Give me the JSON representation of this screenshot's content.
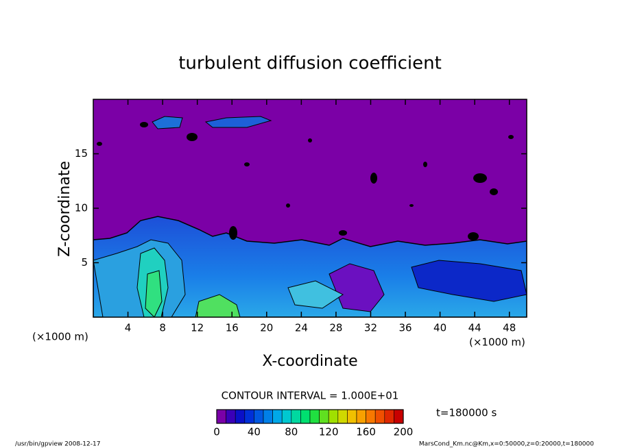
{
  "chart_data": {
    "type": "contour",
    "title": "turbulent diffusion coefficient",
    "x_label": "X-coordinate",
    "y_label": "Z-coordinate",
    "x_units": "(×1000 m)",
    "y_units": "(×1000 m)",
    "xlim": [
      0,
      50
    ],
    "xticks": [
      4,
      8,
      12,
      16,
      20,
      24,
      28,
      32,
      36,
      40,
      44,
      48
    ],
    "ylim": [
      0,
      20
    ],
    "yticks": [
      5,
      10,
      15
    ],
    "contour_note": "CONTOUR INTERVAL = 1.000E+01",
    "time_label": "t=180000 s",
    "colorbar": {
      "lim": [
        0,
        200
      ],
      "ticks": [
        0,
        40,
        80,
        120,
        160,
        200
      ],
      "colors": [
        "#7a00a8",
        "#3a00b8",
        "#0a10c8",
        "#0030d8",
        "#0058e0",
        "#0080e8",
        "#00a8e8",
        "#00c8d0",
        "#00d8a0",
        "#00e070",
        "#20e040",
        "#60e020",
        "#a0e000",
        "#d0d800",
        "#f0c000",
        "#f8a000",
        "#f87800",
        "#f05000",
        "#e02800",
        "#c80000"
      ]
    }
  },
  "footer": {
    "left": "/usr/bin/gpview   2008-12-17",
    "right": "MarsCond_Km.nc@Km,x=0:50000,z=0:20000,t=180000"
  }
}
